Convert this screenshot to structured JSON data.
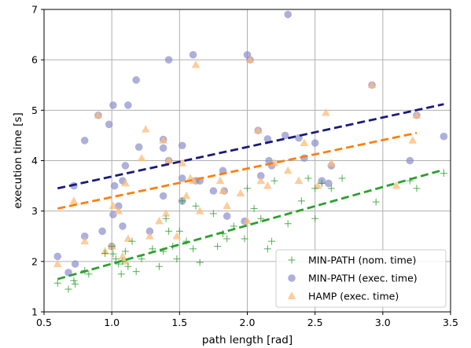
{
  "chart_data": {
    "type": "scatter",
    "xlabel": "path length [rad]",
    "ylabel": "execution time [s]",
    "xlim": [
      0.5,
      3.5
    ],
    "ylim": [
      1,
      7
    ],
    "xticks": [
      0.5,
      1.0,
      1.5,
      2.0,
      2.5,
      3.0,
      3.5
    ],
    "xtick_labels": [
      "0.5",
      "1.0",
      "1.5",
      "2.0",
      "2.5",
      "3.0",
      "3.5"
    ],
    "yticks": [
      1,
      2,
      3,
      4,
      5,
      6,
      7
    ],
    "ytick_labels": [
      "1",
      "2",
      "3",
      "4",
      "5",
      "6",
      "7"
    ],
    "grid": true,
    "legend_position": "bottom-right",
    "series": [
      {
        "name": "MIN-PATH (nom. time)",
        "marker": "plus",
        "color": "#2ca02c",
        "points": [
          [
            0.6,
            1.57
          ],
          [
            0.68,
            1.45
          ],
          [
            0.72,
            1.62
          ],
          [
            0.73,
            1.55
          ],
          [
            0.8,
            1.82
          ],
          [
            0.83,
            1.75
          ],
          [
            0.95,
            2.16
          ],
          [
            1.0,
            2.3
          ],
          [
            1.01,
            2.15
          ],
          [
            1.03,
            2.05
          ],
          [
            1.05,
            1.95
          ],
          [
            1.07,
            1.75
          ],
          [
            1.08,
            2.0
          ],
          [
            1.1,
            2.2
          ],
          [
            1.12,
            1.9
          ],
          [
            1.15,
            2.4
          ],
          [
            1.18,
            1.8
          ],
          [
            1.22,
            2.05
          ],
          [
            1.3,
            2.25
          ],
          [
            1.35,
            1.9
          ],
          [
            1.38,
            2.2
          ],
          [
            1.4,
            2.85
          ],
          [
            1.42,
            2.6
          ],
          [
            1.45,
            2.3
          ],
          [
            1.48,
            2.05
          ],
          [
            1.5,
            2.6
          ],
          [
            1.52,
            3.2
          ],
          [
            1.55,
            2.4
          ],
          [
            1.6,
            2.25
          ],
          [
            1.62,
            3.1
          ],
          [
            1.65,
            1.98
          ],
          [
            1.75,
            2.95
          ],
          [
            1.78,
            2.3
          ],
          [
            1.82,
            2.55
          ],
          [
            1.85,
            2.45
          ],
          [
            1.9,
            2.7
          ],
          [
            1.98,
            2.45
          ],
          [
            2.0,
            3.45
          ],
          [
            2.05,
            3.05
          ],
          [
            2.1,
            2.85
          ],
          [
            2.15,
            2.25
          ],
          [
            2.18,
            2.4
          ],
          [
            2.2,
            3.6
          ],
          [
            2.3,
            2.75
          ],
          [
            2.4,
            3.2
          ],
          [
            2.45,
            3.65
          ],
          [
            2.5,
            3.45
          ],
          [
            2.5,
            2.85
          ],
          [
            2.55,
            3.55
          ],
          [
            2.62,
            3.45
          ],
          [
            2.7,
            3.65
          ],
          [
            2.95,
            3.18
          ],
          [
            3.2,
            3.6
          ],
          [
            3.25,
            3.45
          ],
          [
            3.45,
            3.75
          ]
        ]
      },
      {
        "name": "MIN-PATH (exec. time)",
        "marker": "circle",
        "color": "#8b8fcc",
        "points": [
          [
            0.6,
            2.1
          ],
          [
            0.68,
            1.78
          ],
          [
            0.72,
            3.5
          ],
          [
            0.73,
            1.95
          ],
          [
            0.8,
            2.5
          ],
          [
            0.8,
            4.4
          ],
          [
            0.9,
            4.9
          ],
          [
            0.93,
            2.6
          ],
          [
            0.98,
            4.72
          ],
          [
            1.0,
            2.3
          ],
          [
            1.01,
            5.1
          ],
          [
            1.01,
            2.93
          ],
          [
            1.02,
            3.5
          ],
          [
            1.05,
            3.1
          ],
          [
            1.08,
            3.6
          ],
          [
            1.08,
            2.7
          ],
          [
            1.1,
            3.9
          ],
          [
            1.12,
            5.1
          ],
          [
            1.18,
            5.6
          ],
          [
            1.2,
            4.27
          ],
          [
            1.28,
            2.6
          ],
          [
            1.38,
            4.42
          ],
          [
            1.38,
            4.25
          ],
          [
            1.38,
            3.3
          ],
          [
            1.42,
            6.0
          ],
          [
            1.42,
            4.0
          ],
          [
            1.52,
            3.65
          ],
          [
            1.52,
            3.2
          ],
          [
            1.52,
            4.3
          ],
          [
            1.6,
            6.1
          ],
          [
            1.62,
            3.6
          ],
          [
            1.65,
            3.6
          ],
          [
            1.75,
            3.4
          ],
          [
            1.82,
            3.8
          ],
          [
            1.83,
            3.4
          ],
          [
            1.85,
            2.9
          ],
          [
            1.98,
            2.8
          ],
          [
            2.0,
            6.1
          ],
          [
            2.02,
            6.0
          ],
          [
            2.08,
            4.6
          ],
          [
            2.1,
            3.7
          ],
          [
            2.15,
            4.43
          ],
          [
            2.16,
            4.0
          ],
          [
            2.18,
            3.9
          ],
          [
            2.28,
            4.5
          ],
          [
            2.3,
            6.9
          ],
          [
            2.38,
            4.45
          ],
          [
            2.42,
            4.05
          ],
          [
            2.5,
            4.35
          ],
          [
            2.55,
            3.6
          ],
          [
            2.6,
            3.55
          ],
          [
            2.62,
            3.9
          ],
          [
            2.92,
            5.5
          ],
          [
            3.2,
            4.0
          ],
          [
            3.25,
            4.9
          ],
          [
            3.45,
            4.48
          ]
        ]
      },
      {
        "name": "HAMP (exec. time)",
        "marker": "triangle",
        "color": "#ffbb78",
        "points": [
          [
            0.6,
            1.95
          ],
          [
            0.72,
            3.2
          ],
          [
            0.8,
            2.4
          ],
          [
            0.9,
            4.9
          ],
          [
            0.95,
            2.2
          ],
          [
            1.0,
            2.3
          ],
          [
            1.01,
            3.1
          ],
          [
            1.05,
            3.0
          ],
          [
            1.08,
            2.1
          ],
          [
            1.1,
            3.55
          ],
          [
            1.1,
            2.0
          ],
          [
            1.12,
            2.45
          ],
          [
            1.22,
            4.05
          ],
          [
            1.25,
            4.62
          ],
          [
            1.28,
            2.5
          ],
          [
            1.35,
            2.8
          ],
          [
            1.38,
            4.4
          ],
          [
            1.4,
            2.95
          ],
          [
            1.42,
            4.0
          ],
          [
            1.48,
            2.5
          ],
          [
            1.52,
            3.95
          ],
          [
            1.55,
            3.3
          ],
          [
            1.58,
            3.65
          ],
          [
            1.6,
            3.6
          ],
          [
            1.62,
            5.9
          ],
          [
            1.65,
            3.0
          ],
          [
            1.8,
            3.6
          ],
          [
            1.82,
            3.4
          ],
          [
            1.85,
            3.1
          ],
          [
            1.95,
            3.35
          ],
          [
            2.0,
            2.8
          ],
          [
            2.02,
            6.0
          ],
          [
            2.08,
            4.6
          ],
          [
            2.1,
            3.6
          ],
          [
            2.15,
            3.5
          ],
          [
            2.2,
            3.95
          ],
          [
            2.3,
            3.8
          ],
          [
            2.38,
            3.6
          ],
          [
            2.42,
            4.35
          ],
          [
            2.52,
            3.5
          ],
          [
            2.58,
            4.95
          ],
          [
            2.62,
            3.95
          ],
          [
            2.92,
            5.5
          ],
          [
            3.1,
            3.5
          ],
          [
            3.22,
            4.4
          ],
          [
            3.25,
            4.9
          ]
        ]
      }
    ],
    "trend_lines": [
      {
        "series": "MIN-PATH (exec. time)",
        "color": "#1a1a7a",
        "x": [
          0.6,
          3.45
        ],
        "y": [
          3.45,
          5.12
        ]
      },
      {
        "series": "HAMP (exec. time)",
        "color": "#ff7f0e",
        "x": [
          0.6,
          3.25
        ],
        "y": [
          3.05,
          4.55
        ]
      },
      {
        "series": "MIN-PATH (nom. time)",
        "color": "#2ca02c",
        "x": [
          0.6,
          3.45
        ],
        "y": [
          1.65,
          3.82
        ]
      }
    ]
  }
}
